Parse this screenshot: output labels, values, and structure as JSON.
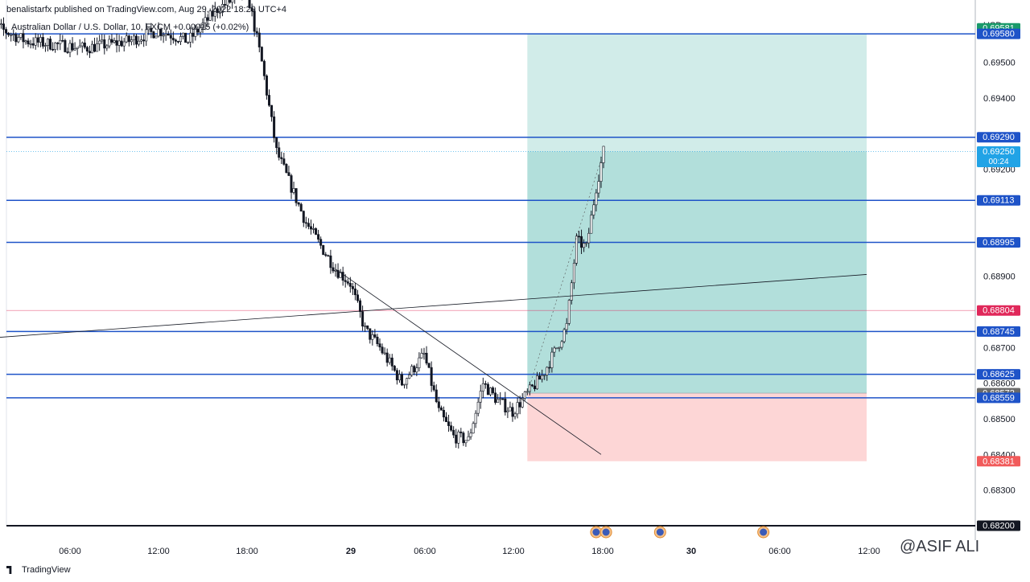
{
  "header": {
    "published": "benalistarfx published on TradingView.com, Aug 29, 2022 18:29 UTC+4",
    "symbol": "Australian Dollar / U.S. Dollar, 10, FXCM",
    "change": "+0.00015 (+0.02%)"
  },
  "footer": {
    "brand": "TradingView"
  },
  "watermark": "@ASIF ALI",
  "colors": {
    "up": "#131722",
    "hline": "#1e53c8",
    "profit_zone": "#b2dfdb",
    "stop_zone": "#fdd6d6",
    "current_price": "#21a3e6",
    "alert_red": "#e0285a",
    "stop_label": "#f15b5b",
    "entry_label": "#6b6b6b",
    "top_label": "#1a9a6a"
  },
  "chart_data": {
    "type": "candlestick",
    "currency": "USD",
    "ylim": [
      0.682,
      0.6963
    ],
    "y_ticks": [
      "0.69500",
      "0.69400",
      "0.69200",
      "0.68900",
      "0.68700",
      "0.68600",
      "0.68500",
      "0.68400",
      "0.68300"
    ],
    "x_ticks": [
      "06:00",
      "12:00",
      "18:00",
      "29",
      "06:00",
      "12:00",
      "18:00",
      "30",
      "06:00",
      "12:00"
    ],
    "horizontal_lines": [
      0.6958,
      0.6929,
      0.69113,
      0.68995,
      0.68745,
      0.68625,
      0.68559
    ],
    "price_labels": [
      {
        "value": "0.69581",
        "role": "top"
      },
      {
        "value": "0.69580",
        "role": "line"
      },
      {
        "value": "0.69290",
        "role": "line"
      },
      {
        "value": "0.69250",
        "role": "current",
        "countdown": "00:24"
      },
      {
        "value": "0.69113",
        "role": "line"
      },
      {
        "value": "0.68995",
        "role": "line"
      },
      {
        "value": "0.68804",
        "role": "alert"
      },
      {
        "value": "0.68745",
        "role": "line"
      },
      {
        "value": "0.68625",
        "role": "line"
      },
      {
        "value": "0.68572",
        "role": "entry"
      },
      {
        "value": "0.68559",
        "role": "line"
      },
      {
        "value": "0.68381",
        "role": "stop"
      },
      {
        "value": "0.68200",
        "role": "bottom"
      }
    ],
    "position": {
      "type": "long",
      "entry": 0.68572,
      "target": 0.6958,
      "stop": 0.68381,
      "current": 0.6925,
      "start_time": "29 13:00",
      "end_time": "30 12:00"
    },
    "trendlines": [
      {
        "from": [
          "28 00:00",
          0.68725
        ],
        "to": [
          "30 12:00",
          0.68905
        ]
      },
      {
        "from": [
          "29 00:00",
          0.6892
        ],
        "to": [
          "29 18:00",
          0.684
        ]
      }
    ],
    "alert_level": 0.68804,
    "price_path": [
      [
        "28 00:00",
        0.6962
      ],
      [
        "28 03:00",
        0.6956
      ],
      [
        "28 07:00",
        0.6954
      ],
      [
        "28 10:00",
        0.6956
      ],
      [
        "28 12:00",
        0.6959
      ],
      [
        "28 14:00",
        0.6956
      ],
      [
        "28 16:00",
        0.6965
      ],
      [
        "28 18:00",
        0.697
      ],
      [
        "28 19:00",
        0.695
      ],
      [
        "28 20:00",
        0.6925
      ],
      [
        "28 21:00",
        0.6915
      ],
      [
        "28 22:00",
        0.6905
      ],
      [
        "29 00:00",
        0.6892
      ],
      [
        "29 01:00",
        0.6888
      ],
      [
        "29 02:00",
        0.6875
      ],
      [
        "29 03:00",
        0.687
      ],
      [
        "29 04:30",
        0.686
      ],
      [
        "29 06:00",
        0.6868
      ],
      [
        "29 07:00",
        0.6852
      ],
      [
        "29 08:00",
        0.6845
      ],
      [
        "29 09:00",
        0.6844
      ],
      [
        "29 10:00",
        0.686
      ],
      [
        "29 11:00",
        0.6855
      ],
      [
        "29 12:00",
        0.6852
      ],
      [
        "29 13:00",
        0.6857
      ],
      [
        "29 14:00",
        0.6862
      ],
      [
        "29 15:00",
        0.687
      ],
      [
        "29 15:40",
        0.6876
      ],
      [
        "29 16:20",
        0.69
      ],
      [
        "29 17:00",
        0.6898
      ],
      [
        "29 17:40",
        0.6915
      ],
      [
        "29 18:10",
        0.6925
      ]
    ],
    "event_markers": [
      "29 17:40",
      "29 18:20",
      "29 22:00",
      "30 05:00"
    ]
  }
}
